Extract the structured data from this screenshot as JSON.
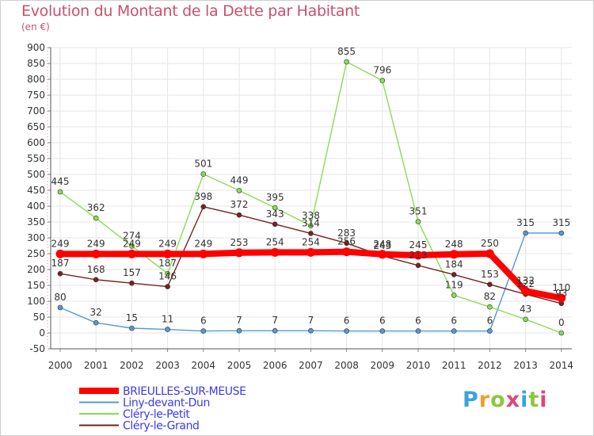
{
  "title": "Evolution du Montant de la Dette par Habitant",
  "subtitle": "(en €)",
  "logo": "Proxiti",
  "chart_data": {
    "type": "line",
    "title": "Evolution du Montant de la Dette par Habitant",
    "ylabel": "(en €)",
    "xlabel": "",
    "ylim": [
      -50,
      900
    ],
    "yticks": [
      "-50",
      "0",
      "50",
      "100",
      "150",
      "200",
      "250",
      "300",
      "350",
      "400",
      "450",
      "500",
      "550",
      "600",
      "650",
      "700",
      "750",
      "800",
      "850",
      "900"
    ],
    "categories": [
      "2000",
      "2001",
      "2002",
      "2003",
      "2004",
      "2005",
      "2006",
      "2007",
      "2008",
      "2009",
      "2010",
      "2011",
      "2012",
      "2013",
      "2014"
    ],
    "grid": true,
    "legend_position": "bottom-left",
    "series": [
      {
        "name": "BRIEULLES-SUR-MEUSE",
        "color": "#ff0000",
        "values": [
          249,
          249,
          249,
          249,
          249,
          253,
          254,
          254,
          256,
          248,
          245,
          248,
          250,
          132,
          110
        ],
        "labels": [
          "249",
          "249",
          "249",
          "249",
          "249",
          "253",
          "254",
          "254",
          "256",
          "248",
          "245",
          "248",
          "250",
          "132",
          "110"
        ]
      },
      {
        "name": "Liny-devant-Dun",
        "color": "#5599d3",
        "values": [
          80,
          32,
          15,
          11,
          6,
          7,
          7,
          7,
          6,
          6,
          6,
          6,
          6,
          315,
          315
        ],
        "labels": [
          "80",
          "32",
          "15",
          "11",
          "6",
          "7",
          "7",
          "7",
          "6",
          "6",
          "6",
          "6",
          "6",
          "315",
          "315"
        ]
      },
      {
        "name": "Cléry-le-Petit",
        "color": "#88dd55",
        "values": [
          445,
          362,
          274,
          187,
          501,
          449,
          395,
          338,
          855,
          796,
          351,
          119,
          82,
          43,
          0
        ],
        "labels": [
          "445",
          "362",
          "274",
          "187",
          "501",
          "449",
          "395",
          "338",
          "855",
          "796",
          "351",
          "119",
          "82",
          "43",
          "0"
        ]
      },
      {
        "name": "Cléry-le-Grand",
        "color": "#772222",
        "values": [
          187,
          168,
          157,
          146,
          398,
          372,
          343,
          314,
          283,
          243,
          213,
          184,
          153,
          122,
          93
        ],
        "labels": [
          "187",
          "168",
          "157",
          "146",
          "398",
          "372",
          "343",
          "314",
          "283",
          "243",
          "213",
          "184",
          "153",
          "122",
          "93"
        ]
      }
    ]
  }
}
